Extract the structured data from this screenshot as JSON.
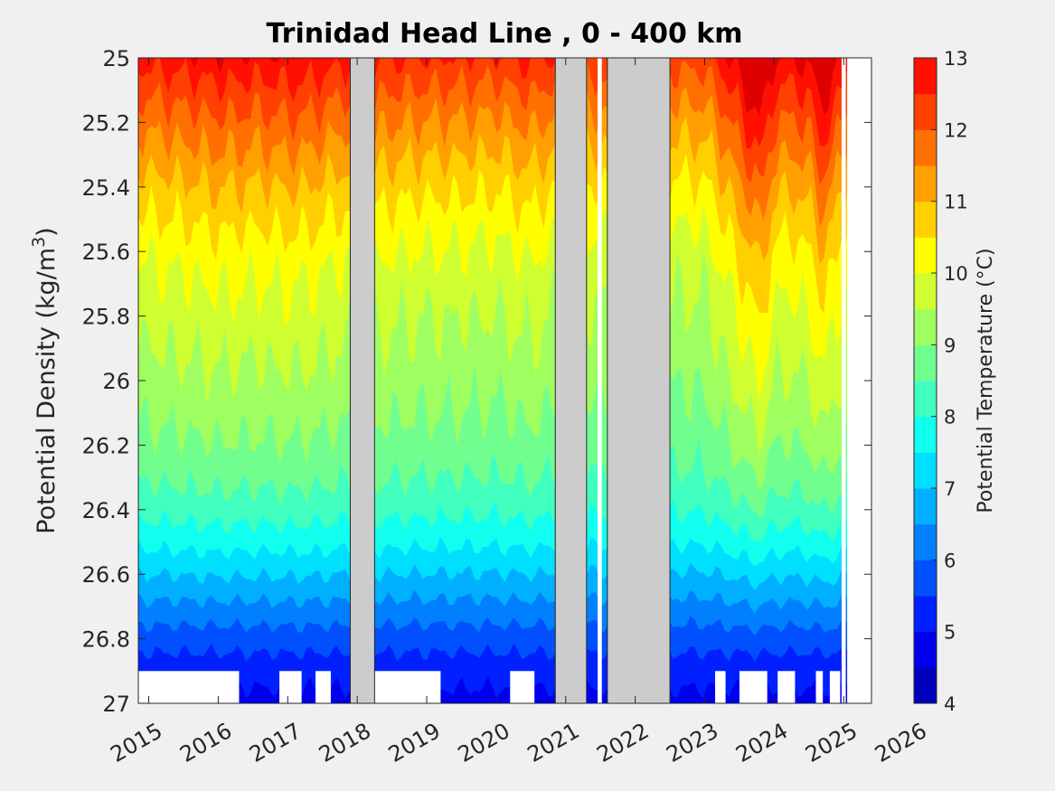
{
  "chart_data": {
    "type": "contour",
    "title": "Trinidad Head Line , 0 - 400 km",
    "ylabel_base": "Potential Density (kg/m",
    "ylabel_sup": "3",
    "ylabel_end": ")",
    "colorbar_label": "Potential Temperature (°C)",
    "y_reversed": true,
    "ylim": [
      25,
      27
    ],
    "xlim": [
      2014.85,
      2025.4
    ],
    "x_ticks": [
      "2015",
      "2016",
      "2017",
      "2018",
      "2019",
      "2020",
      "2021",
      "2022",
      "2023",
      "2024",
      "2025",
      "2026"
    ],
    "x_tick_values": [
      2015,
      2016,
      2017,
      2018,
      2019,
      2020,
      2021,
      2022,
      2023,
      2024,
      2025,
      2026
    ],
    "y_ticks": [
      "25",
      "25.2",
      "25.4",
      "25.6",
      "25.8",
      "26",
      "26.2",
      "26.4",
      "26.6",
      "26.8",
      "27"
    ],
    "y_tick_values": [
      25,
      25.2,
      25.4,
      25.6,
      25.8,
      26,
      26.2,
      26.4,
      26.6,
      26.8,
      27
    ],
    "colorbar": {
      "min": 4,
      "max": 13,
      "ticks": [
        "4",
        "5",
        "6",
        "7",
        "8",
        "9",
        "10",
        "11",
        "12",
        "13"
      ],
      "tick_values": [
        4,
        5,
        6,
        7,
        8,
        9,
        10,
        11,
        12,
        13
      ],
      "levels": [
        4,
        4.5,
        5,
        5.5,
        6,
        6.5,
        7,
        7.5,
        8,
        8.5,
        9,
        9.5,
        10,
        10.5,
        11,
        11.5,
        12,
        12.5,
        13
      ],
      "colors": [
        "#00008f",
        "#0000bf",
        "#0000ef",
        "#0020ff",
        "#0050ff",
        "#0080ff",
        "#00afff",
        "#00dfff",
        "#10ffef",
        "#40ffbf",
        "#70ff8f",
        "#9fff60",
        "#cfff30",
        "#ffff00",
        "#ffcf00",
        "#ff9f00",
        "#ff7000",
        "#ff4000",
        "#ff1000",
        "#df0000",
        "#af0000"
      ]
    },
    "profile": {
      "sigma": [
        25.0,
        25.1,
        25.2,
        25.3,
        25.4,
        25.5,
        25.6,
        25.7,
        25.8,
        25.9,
        26.0,
        26.1,
        26.2,
        26.3,
        26.4,
        26.5,
        26.6,
        26.7,
        26.8,
        26.9,
        27.0
      ],
      "temp": [
        12.0,
        11.5,
        11.0,
        10.6,
        10.2,
        9.9,
        9.6,
        9.4,
        9.25,
        9.1,
        8.95,
        8.8,
        8.6,
        8.35,
        8.0,
        7.5,
        6.9,
        6.3,
        5.7,
        5.2,
        4.8
      ]
    },
    "anomaly_times": [
      2014.85,
      2015.3,
      2015.7,
      2016.0,
      2016.3,
      2016.6,
      2017.0,
      2017.3,
      2017.6,
      2017.85,
      2018.25,
      2018.6,
      2019.0,
      2019.3,
      2019.7,
      2020.0,
      2020.3,
      2020.5,
      2020.9,
      2021.3,
      2021.55,
      2021.75,
      2022.0,
      2022.5,
      2023.0,
      2023.3,
      2023.55,
      2023.8,
      2024.0,
      2024.3,
      2024.55,
      2024.7,
      2024.9,
      2025.1,
      2025.4
    ],
    "anomaly_values": [
      0.6,
      0.7,
      0.8,
      0.9,
      0.85,
      0.8,
      0.9,
      0.85,
      0.7,
      0.6,
      0.6,
      0.5,
      0.45,
      0.45,
      0.4,
      0.35,
      0.5,
      0.6,
      0.3,
      0.3,
      0.3,
      0.4,
      0.3,
      0.2,
      0.2,
      0.8,
      1.4,
      2.0,
      1.0,
      0.9,
      1.2,
      1.8,
      1.2,
      0.5,
      0.4
    ],
    "no_data_gaps": [
      [
        2017.9,
        2018.25
      ],
      [
        2020.85,
        2021.3
      ],
      [
        2021.6,
        2022.5
      ]
    ],
    "white_gaps": [
      [
        2021.46,
        2021.52
      ],
      [
        2024.97,
        2025.03
      ],
      [
        2025.05,
        2025.4
      ]
    ],
    "bottom_missing": [
      [
        2014.85,
        2016.3
      ],
      [
        2016.88,
        2017.2
      ],
      [
        2017.4,
        2017.62
      ],
      [
        2018.25,
        2019.2
      ],
      [
        2020.2,
        2020.55
      ],
      [
        2021.8,
        2022.0
      ],
      [
        2023.15,
        2023.3
      ],
      [
        2023.5,
        2023.9
      ],
      [
        2024.05,
        2024.3
      ],
      [
        2024.6,
        2024.7
      ],
      [
        2024.8,
        2024.95
      ]
    ]
  }
}
